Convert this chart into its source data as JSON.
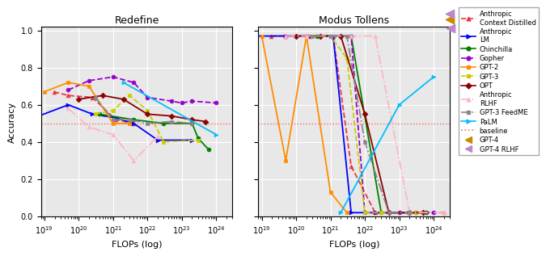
{
  "redefine": {
    "Anthropic Context Distilled": {
      "flops": [
        1.9e+19,
        5e+19,
        2.5e+20,
        1.2e+21,
        4e+21
      ],
      "acc": [
        0.67,
        0.65,
        0.64,
        0.52,
        0.5
      ],
      "color": "#e63946",
      "marker": "^",
      "linestyle": "--",
      "lw": 1.3
    },
    "Anthropic LM": {
      "flops": [
        5e+18,
        5e+19,
        2.5e+20,
        1.2e+21,
        4e+21,
        2e+22,
        2e+23
      ],
      "acc": [
        0.53,
        0.6,
        0.55,
        0.53,
        0.5,
        0.41,
        0.41
      ],
      "color": "#0000ff",
      "marker": ">",
      "linestyle": "-",
      "lw": 1.3
    },
    "Chinchilla": {
      "flops": [
        4e+20,
        4e+21,
        3e+22,
        2e+23,
        3e+23,
        6e+23
      ],
      "acc": [
        0.55,
        0.52,
        0.5,
        0.5,
        0.42,
        0.36
      ],
      "color": "#008000",
      "marker": "o",
      "linestyle": "-",
      "lw": 1.3
    },
    "Gopher": {
      "flops": [
        5e+19,
        2e+20,
        1e+21,
        4e+21,
        1e+22,
        5e+22,
        1e+23,
        2e+23,
        1e+24
      ],
      "acc": [
        0.68,
        0.73,
        0.75,
        0.72,
        0.64,
        0.62,
        0.61,
        0.62,
        0.61
      ],
      "color": "#9900cc",
      "marker": "o",
      "linestyle": "--",
      "lw": 1.3
    },
    "GPT-2": {
      "flops": [
        1e+19,
        5e+19,
        2e+20,
        1e+21,
        3e+21
      ],
      "acc": [
        0.67,
        0.72,
        0.7,
        0.5,
        0.5
      ],
      "color": "#ff8c00",
      "marker": "s",
      "linestyle": "-",
      "lw": 1.3
    },
    "GPT-3": {
      "flops": [
        3e+20,
        1e+21,
        3e+21,
        1e+22,
        3e+22,
        3e+23
      ],
      "acc": [
        0.55,
        0.57,
        0.65,
        0.57,
        0.4,
        0.41
      ],
      "color": "#cccc00",
      "marker": "s",
      "linestyle": "--",
      "lw": 1.3
    },
    "OPT": {
      "flops": [
        1e+20,
        5e+20,
        2e+21,
        1e+22,
        5e+22,
        2e+23,
        5e+23
      ],
      "acc": [
        0.63,
        0.65,
        0.63,
        0.55,
        0.54,
        0.52,
        0.51
      ],
      "color": "#8b0000",
      "marker": "D",
      "linestyle": "-",
      "lw": 1.3
    },
    "Anthropic RLHF": {
      "flops": [
        5e+19,
        2e+20,
        1e+21,
        4e+21,
        2e+22
      ],
      "acc": [
        0.58,
        0.48,
        0.44,
        0.3,
        0.43
      ],
      "color": "#ffb6c1",
      "marker": "^",
      "linestyle": "-.",
      "lw": 1.3
    },
    "GPT-3 FeedME": {
      "flops": [
        3e+20,
        1e+21,
        3e+21,
        1e+22,
        5e+22,
        2e+23
      ],
      "acc": [
        0.64,
        0.52,
        0.52,
        0.5,
        0.51,
        0.5
      ],
      "color": "#888888",
      "marker": "s",
      "linestyle": "-.",
      "lw": 1.3
    },
    "PaLM": {
      "flops": [
        2e+21,
        1e+24
      ],
      "acc": [
        0.72,
        0.44
      ],
      "color": "#00bfff",
      "marker": ">",
      "linestyle": "-",
      "lw": 1.3
    }
  },
  "modus_tollens": {
    "Anthropic Context Distilled": {
      "flops": [
        1.9e+19,
        5e+19,
        2.5e+20,
        1.2e+21,
        4e+21,
        2e+22,
        2e+23,
        2e+24
      ],
      "acc": [
        0.97,
        0.97,
        0.97,
        0.97,
        0.27,
        0.02,
        0.02,
        0.02
      ],
      "color": "#e63946",
      "marker": "^",
      "linestyle": "--",
      "lw": 1.3
    },
    "Anthropic LM": {
      "flops": [
        5e+18,
        5e+19,
        2.5e+20,
        1.2e+21,
        4e+21,
        2e+22,
        2e+23
      ],
      "acc": [
        0.97,
        0.97,
        0.97,
        0.97,
        0.02,
        0.02,
        0.02
      ],
      "color": "#0000ff",
      "marker": ">",
      "linestyle": "-",
      "lw": 1.3
    },
    "Chinchilla": {
      "flops": [
        4e+20,
        4e+21,
        3e+22,
        2e+23,
        3e+23,
        6e+23
      ],
      "acc": [
        0.97,
        0.97,
        0.02,
        0.02,
        0.02,
        0.02
      ],
      "color": "#008000",
      "marker": "o",
      "linestyle": "-",
      "lw": 1.3
    },
    "Gopher": {
      "flops": [
        5e+19,
        2e+20,
        1e+21,
        4e+21,
        1e+22,
        5e+22,
        1e+23,
        2e+23,
        1e+24
      ],
      "acc": [
        0.97,
        0.97,
        0.97,
        0.97,
        0.02,
        0.02,
        0.02,
        0.02,
        0.02
      ],
      "color": "#9900cc",
      "marker": "o",
      "linestyle": "--",
      "lw": 1.3
    },
    "GPT-2": {
      "flops": [
        1e+19,
        5e+19,
        2e+20,
        1e+21,
        3e+21
      ],
      "acc": [
        0.97,
        0.3,
        0.97,
        0.13,
        0.02
      ],
      "color": "#ff8c00",
      "marker": "s",
      "linestyle": "-",
      "lw": 1.3
    },
    "GPT-3": {
      "flops": [
        3e+20,
        1e+21,
        3e+21,
        1e+22,
        3e+22,
        3e+23
      ],
      "acc": [
        0.97,
        0.97,
        0.85,
        0.02,
        0.02,
        0.02
      ],
      "color": "#cccc00",
      "marker": "s",
      "linestyle": "--",
      "lw": 1.3
    },
    "OPT": {
      "flops": [
        1e+20,
        5e+20,
        2e+21,
        1e+22,
        5e+22,
        2e+23,
        5e+23
      ],
      "acc": [
        0.97,
        0.97,
        0.97,
        0.55,
        0.02,
        0.02,
        0.02
      ],
      "color": "#8b0000",
      "marker": "D",
      "linestyle": "-",
      "lw": 1.3
    },
    "Anthropic RLHF": {
      "flops": [
        5e+19,
        2e+20,
        1e+21,
        4e+21,
        2e+22,
        2e+23,
        2e+24
      ],
      "acc": [
        0.97,
        0.97,
        0.97,
        0.97,
        0.97,
        0.02,
        0.02
      ],
      "color": "#ffb6c1",
      "marker": "^",
      "linestyle": "-.",
      "lw": 1.3
    },
    "GPT-3 FeedME": {
      "flops": [
        3e+20,
        1e+21,
        3e+21,
        1e+22,
        5e+22,
        2e+23
      ],
      "acc": [
        0.97,
        0.97,
        0.97,
        0.4,
        0.02,
        0.02
      ],
      "color": "#888888",
      "marker": "s",
      "linestyle": "-.",
      "lw": 1.3
    },
    "PaLM": {
      "flops": [
        2e+21,
        1e+23,
        1e+24
      ],
      "acc": [
        0.02,
        0.6,
        0.75
      ],
      "color": "#00bfff",
      "marker": ">",
      "linestyle": "-",
      "lw": 1.3
    }
  },
  "gpt4_modus": {
    "flops": 3.13e+24,
    "acc": 0.97,
    "color": "#cc8800"
  },
  "gpt4_rlhf_modus": {
    "flops": 3.13e+24,
    "acc": 0.97,
    "color": "#bb88cc"
  },
  "baseline": 0.5,
  "ylim": [
    0.0,
    1.02
  ],
  "xlim": [
    8e+18,
    3e+24
  ],
  "bg_color": "#e8e8e8",
  "legend": {
    "Anthropic\nContext Distilled": {
      "color": "#e63946",
      "marker": "^",
      "linestyle": "--"
    },
    "Anthropic\nLM": {
      "color": "#0000ff",
      "marker": ">",
      "linestyle": "-"
    },
    "Chinchilla": {
      "color": "#008000",
      "marker": "o",
      "linestyle": "-"
    },
    "Gopher": {
      "color": "#9900cc",
      "marker": "o",
      "linestyle": "--"
    },
    "GPT-2": {
      "color": "#ff8c00",
      "marker": "s",
      "linestyle": "-"
    },
    "GPT-3": {
      "color": "#cccc00",
      "marker": "s",
      "linestyle": "--"
    },
    "OPT": {
      "color": "#8b0000",
      "marker": "D",
      "linestyle": "-"
    },
    "Anthropic\nRLHF": {
      "color": "#ffb6c1",
      "marker": "^",
      "linestyle": "-."
    },
    "GPT-3 FeedME": {
      "color": "#888888",
      "marker": "s",
      "linestyle": "-."
    },
    "PaLM": {
      "color": "#00bfff",
      "marker": ">",
      "linestyle": "-"
    },
    "baseline": {
      "color": "#ff6666",
      "marker": "none",
      "linestyle": ":"
    },
    "GPT-4": {
      "color": "#cc8800",
      "marker": "<",
      "linestyle": "none"
    },
    "GPT-4 RLHF": {
      "color": "#bb88cc",
      "marker": "<",
      "linestyle": "none"
    }
  }
}
